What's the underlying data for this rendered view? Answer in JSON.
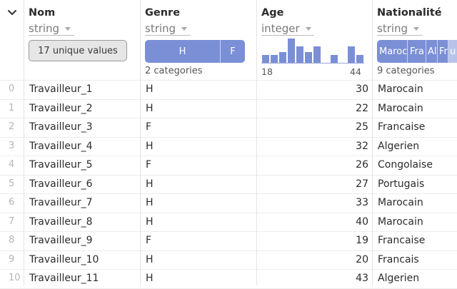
{
  "columns": [
    {
      "name": "Nom",
      "type": "string",
      "summary": "17 unique values"
    },
    {
      "name": "Genre",
      "type": "string",
      "categories": [
        "H",
        "F"
      ],
      "caption": "2 categories"
    },
    {
      "name": "Age",
      "type": "integer",
      "histogram": [
        3,
        3,
        4,
        9,
        6,
        4,
        6,
        0,
        3,
        0,
        6,
        3
      ],
      "min": "18",
      "max": "44"
    },
    {
      "name": "Nationalité",
      "type": "string",
      "categories": [
        "Maroc",
        "Fra",
        "Al",
        "Fr",
        "u"
      ],
      "caption": "9 categories"
    }
  ],
  "rows": [
    {
      "idx": "0",
      "nom": "Travailleur_1",
      "genre": "H",
      "age": "30",
      "nat": "Marocain"
    },
    {
      "idx": "1",
      "nom": "Travailleur_2",
      "genre": "H",
      "age": "22",
      "nat": "Marocain"
    },
    {
      "idx": "2",
      "nom": "Travailleur_3",
      "genre": "F",
      "age": "25",
      "nat": "Francaise"
    },
    {
      "idx": "3",
      "nom": "Travailleur_4",
      "genre": "H",
      "age": "32",
      "nat": "Algerien"
    },
    {
      "idx": "4",
      "nom": "Travailleur_5",
      "genre": "F",
      "age": "26",
      "nat": "Congolaise"
    },
    {
      "idx": "5",
      "nom": "Travailleur_6",
      "genre": "H",
      "age": "27",
      "nat": "Portugais"
    },
    {
      "idx": "6",
      "nom": "Travailleur_7",
      "genre": "H",
      "age": "33",
      "nat": "Marocain"
    },
    {
      "idx": "7",
      "nom": "Travailleur_8",
      "genre": "H",
      "age": "40",
      "nat": "Marocain"
    },
    {
      "idx": "8",
      "nom": "Travailleur_9",
      "genre": "F",
      "age": "19",
      "nat": "Francaise"
    },
    {
      "idx": "9",
      "nom": "Travailleur_10",
      "genre": "H",
      "age": "20",
      "nat": "Francais"
    },
    {
      "idx": "10",
      "nom": "Travailleur_11",
      "genre": "H",
      "age": "43",
      "nat": "Algerien"
    }
  ],
  "icons": {
    "collapse": "chevron-down-icon",
    "type_menu": "caret-down-icon"
  },
  "colors": {
    "accent": "#7b8fd6",
    "grid": "#e3e3e3"
  }
}
